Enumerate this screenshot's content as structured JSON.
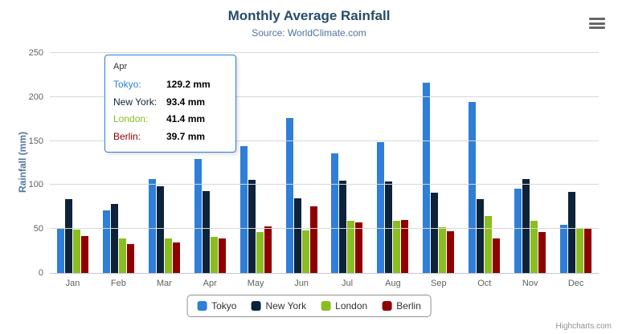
{
  "chart_data": {
    "type": "bar",
    "title": "Monthly Average Rainfall",
    "subtitle": "Source: WorldClimate.com",
    "xlabel": "",
    "ylabel": "Rainfall (mm)",
    "ylim": [
      0,
      250
    ],
    "yticks": [
      0,
      50,
      100,
      150,
      200,
      250
    ],
    "grid": true,
    "legend_position": "bottom",
    "categories": [
      "Jan",
      "Feb",
      "Mar",
      "Apr",
      "May",
      "Jun",
      "Jul",
      "Aug",
      "Sep",
      "Oct",
      "Nov",
      "Dec"
    ],
    "series": [
      {
        "name": "Tokyo",
        "color": "#2f7ed8",
        "values": [
          49.9,
          71.5,
          106.4,
          129.2,
          144.0,
          176.0,
          135.6,
          148.5,
          216.4,
          194.1,
          95.6,
          54.4
        ]
      },
      {
        "name": "New York",
        "color": "#0d233a",
        "values": [
          83.6,
          78.8,
          98.5,
          93.4,
          106.0,
          84.5,
          105.0,
          104.3,
          91.2,
          83.5,
          106.6,
          92.3
        ]
      },
      {
        "name": "London",
        "color": "#8bbc21",
        "values": [
          48.9,
          38.8,
          39.3,
          41.4,
          47.0,
          48.3,
          59.0,
          59.6,
          52.4,
          65.2,
          59.3,
          51.2
        ]
      },
      {
        "name": "Berlin",
        "color": "#910000",
        "values": [
          42.4,
          33.2,
          34.5,
          39.7,
          52.6,
          75.5,
          57.4,
          60.4,
          47.6,
          39.1,
          46.8,
          51.1
        ]
      }
    ]
  },
  "tooltip": {
    "header": "Apr",
    "border_color": "#2f7ed8",
    "rows": [
      {
        "name": "Tokyo:",
        "value": "129.2 mm",
        "color": "#2f7ed8"
      },
      {
        "name": "New York:",
        "value": "93.4 mm",
        "color": "#0d233a"
      },
      {
        "name": "London:",
        "value": "41.4 mm",
        "color": "#8bbc21"
      },
      {
        "name": "Berlin:",
        "value": "39.7 mm",
        "color": "#910000"
      }
    ]
  },
  "credits": "Highcharts.com"
}
